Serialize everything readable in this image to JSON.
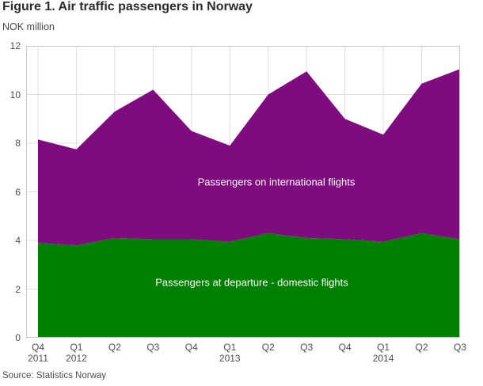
{
  "title": "Figure 1. Air traffic passengers in Norway",
  "unit_label": "NOK million",
  "source": "Source: Statistics Norway",
  "colors": {
    "domestic_green": "#008000",
    "international_purple": "#7f0c7f",
    "gridline": "#dcdcdc",
    "plot_border": "#c9c9c9",
    "axis_text": "#4d4d4d",
    "title_text": "#2b2b2b"
  },
  "chart_data": {
    "type": "area",
    "stacked": true,
    "title": "Figure 1. Air traffic passengers in Norway",
    "ylabel": "NOK million",
    "xlabel": "",
    "grid": true,
    "legend_position": "inside-area-labels",
    "categories": [
      "Q4",
      "Q1",
      "Q2",
      "Q3",
      "Q4",
      "Q1",
      "Q2",
      "Q3",
      "Q4",
      "Q1",
      "Q2",
      "Q3"
    ],
    "year_labels": {
      "0": "2011",
      "1": "2012",
      "5": "2013",
      "9": "2014"
    },
    "ylim": [
      0,
      12
    ],
    "yticks": [
      0,
      2,
      4,
      6,
      8,
      10,
      12
    ],
    "series": [
      {
        "name": "Passengers at departure - domestic flights",
        "color": "#008000",
        "values": [
          3.9,
          3.8,
          4.1,
          4.05,
          4.05,
          3.95,
          4.3,
          4.1,
          4.05,
          3.95,
          4.3,
          4.05
        ]
      },
      {
        "name": "Passengers on international flights",
        "color": "#7f0c7f",
        "values": [
          4.25,
          3.95,
          5.2,
          6.15,
          4.45,
          3.95,
          5.7,
          6.85,
          4.95,
          4.4,
          6.15,
          7.0
        ]
      }
    ],
    "totals": [
      8.15,
      7.75,
      9.3,
      10.2,
      8.5,
      7.9,
      10.0,
      10.95,
      9.0,
      8.35,
      10.45,
      11.05
    ]
  }
}
